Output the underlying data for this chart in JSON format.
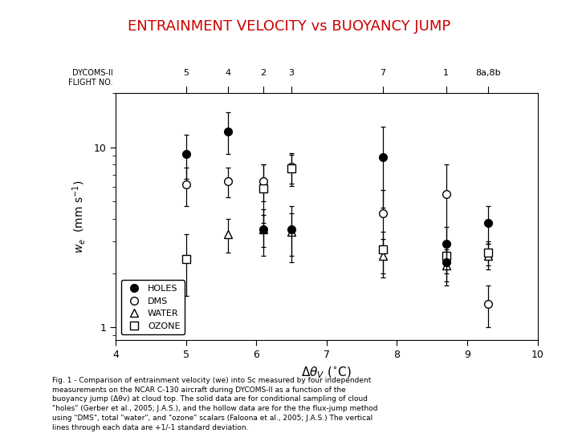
{
  "title": "ENTRAINMENT VELOCITY vs BUOYANCY JUMP",
  "title_color": "#cc0000",
  "xlim": [
    4,
    10
  ],
  "ylim_log": [
    0.85,
    20
  ],
  "flight_labels": {
    "5": 5.0,
    "4": 5.6,
    "2": 6.1,
    "3": 6.5,
    "7": 7.8,
    "1": 8.7,
    "8a,8b": 9.3
  },
  "holes": {
    "x": [
      5.0,
      5.6,
      6.1,
      6.5,
      7.8,
      8.7,
      8.7,
      9.3
    ],
    "y": [
      9.2,
      12.2,
      3.5,
      3.5,
      8.8,
      2.9,
      2.3,
      3.8
    ],
    "yerr_lo": [
      2.5,
      3.0,
      1.0,
      1.2,
      4.2,
      0.7,
      0.5,
      0.9
    ],
    "yerr_hi": [
      2.5,
      3.5,
      1.0,
      1.2,
      4.2,
      0.7,
      0.5,
      0.9
    ]
  },
  "dms": {
    "x": [
      5.0,
      5.6,
      6.1,
      6.5,
      7.8,
      8.7,
      9.3
    ],
    "y": [
      6.2,
      6.5,
      6.5,
      7.8,
      4.3,
      5.5,
      1.35
    ],
    "yerr_lo": [
      1.5,
      1.2,
      1.5,
      1.5,
      1.5,
      2.5,
      0.35
    ],
    "yerr_hi": [
      1.5,
      1.2,
      1.5,
      1.5,
      1.5,
      2.5,
      0.35
    ]
  },
  "water": {
    "x": [
      5.6,
      6.1,
      6.5,
      7.8,
      8.7,
      9.3
    ],
    "y": [
      3.3,
      3.5,
      3.4,
      2.5,
      2.2,
      2.5
    ],
    "yerr_lo": [
      0.7,
      0.7,
      0.9,
      0.6,
      0.5,
      0.4
    ],
    "yerr_hi": [
      0.7,
      0.7,
      0.9,
      0.6,
      0.5,
      0.4
    ]
  },
  "ozone": {
    "x": [
      5.0,
      6.1,
      6.5,
      7.8,
      8.7,
      9.3
    ],
    "y": [
      2.4,
      5.9,
      7.6,
      2.7,
      2.5,
      2.6
    ],
    "yerr_lo": [
      0.9,
      2.1,
      1.5,
      0.7,
      0.5,
      0.4
    ],
    "yerr_hi": [
      0.9,
      2.1,
      1.5,
      0.7,
      0.5,
      0.4
    ]
  },
  "caption": "Fig. 1 - Comparison of entrainment velocity (we) into Sc measured by four independent\nmeasurements on the NCAR C-130 aircraft during DYCOMS-II as a function of the\nbuoyancy jump (Δθv) at cloud top. The solid data are for conditional sampling of cloud\n\"holes\" (Gerber et al., 2005; J.A.S.), and the hollow data are for the the flux-jump method\nusing \"DMS\", total \"water\", and \"ozone\" scalars (Faloona et al., 2005; J.A.S.) The vertical\nlines through each data are +1/-1 standard deviation."
}
